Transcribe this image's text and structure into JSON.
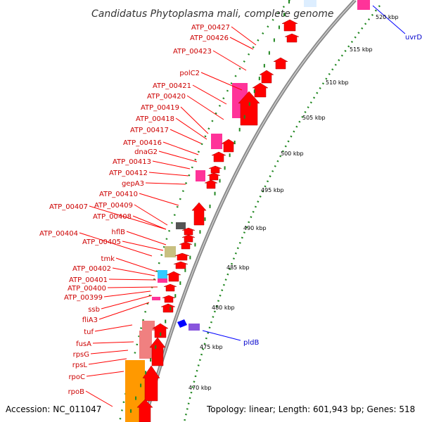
{
  "header": {
    "title": "Candidatus Phytoplasma mali, complete genome"
  },
  "footer": {
    "accession": "Accession: NC_011047",
    "summary": "Topology: linear; Length: 601,943 bp; Genes: 518"
  },
  "colors": {
    "cds": "#ff0000",
    "rna": "#ff3399",
    "pink_light": "#f08080",
    "orange": "#ff9900",
    "khaki": "#c8c080",
    "cyan": "#33ccff",
    "gray": "#555555",
    "blue": "#0000ff",
    "purple": "#8855dd",
    "backbone": "#888888",
    "ruler_dots": "#228822",
    "label_red": "#cc0000",
    "label_blue": "#0000cc"
  },
  "ruler_ticks": [
    "520 kbp",
    "515 kbp",
    "510 kbp",
    "505 kbp",
    "500 kbp",
    "495 kbp",
    "490 kbp",
    "485 kbp",
    "480 kbp",
    "475 kbp",
    "470 kbp"
  ],
  "gene_labels_left": [
    "ATP_00427",
    "ATP_00426",
    "ATP_00423",
    "polC2",
    "ATP_00421",
    "ATP_00420",
    "ATP_00419",
    "ATP_00418",
    "ATP_00417",
    "ATP_00416",
    "dnaG2",
    "ATP_00413",
    "ATP_00412",
    "gepA3",
    "ATP_00410",
    "ATP_00407",
    "ATP_00409",
    "ATP_00408",
    "hflB",
    "ATP_00404",
    "ATP_00405",
    "tmk",
    "ATP_00402",
    "ATP_00401",
    "ATP_00400",
    "ATP_00399",
    "ssb",
    "fliA3",
    "tuf",
    "fusA",
    "rpsG",
    "rpsL",
    "rpoC",
    "rpoB"
  ],
  "gene_labels_right": [
    "uvrD",
    "pldB"
  ]
}
